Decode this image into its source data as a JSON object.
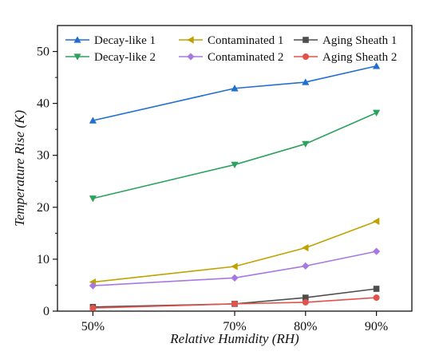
{
  "chart_data": {
    "type": "line",
    "title": "",
    "xlabel": "Relative Humidity (RH)",
    "ylabel": "Temperature Rise (K)",
    "x": [
      50,
      70,
      80,
      90
    ],
    "x_tick_labels": [
      "50%",
      "70%",
      "80%",
      "90%"
    ],
    "xlim": [
      45,
      95
    ],
    "ylim": [
      0,
      55
    ],
    "y_ticks": [
      0,
      10,
      20,
      30,
      40,
      50
    ],
    "grid": false,
    "legend_position": "top",
    "series": [
      {
        "name": "Decay-like 1",
        "values": [
          36.7,
          42.9,
          44.1,
          47.2
        ],
        "color": "#1f6fd1",
        "marker": "triangle-up"
      },
      {
        "name": "Decay-like 2",
        "values": [
          21.7,
          28.2,
          32.2,
          38.2
        ],
        "color": "#2ca25f",
        "marker": "triangle-down"
      },
      {
        "name": "Contaminated 1",
        "values": [
          5.6,
          8.6,
          12.2,
          17.3
        ],
        "color": "#c1a100",
        "marker": "triangle-left"
      },
      {
        "name": "Contaminated 2",
        "values": [
          4.9,
          6.4,
          8.7,
          11.5
        ],
        "color": "#a678e0",
        "marker": "diamond"
      },
      {
        "name": "Aging Sheath 1",
        "values": [
          0.8,
          1.4,
          2.6,
          4.3
        ],
        "color": "#4d4d4d",
        "marker": "square"
      },
      {
        "name": "Aging Sheath 2",
        "values": [
          0.6,
          1.4,
          1.7,
          2.6
        ],
        "color": "#e0524a",
        "marker": "circle"
      }
    ]
  }
}
